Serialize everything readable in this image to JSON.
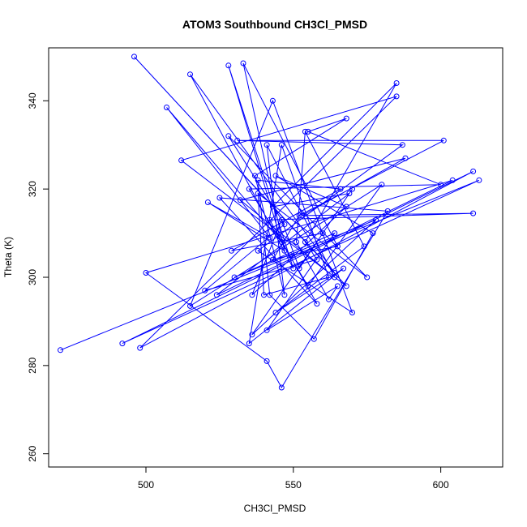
{
  "chart_data": {
    "type": "line",
    "title": "ATOM3 Southbound CH3Cl_PMSD",
    "xlabel": "CH3Cl_PMSD",
    "ylabel": "Theta (K)",
    "xlim": [
      467,
      621
    ],
    "ylim": [
      257,
      352
    ],
    "xticks": [
      500,
      550,
      600
    ],
    "yticks": [
      260,
      280,
      300,
      320,
      340
    ],
    "grid": false,
    "legend": "none",
    "series": [
      {
        "color": "#0000ff",
        "marker": "open-circle",
        "x": [
          471,
          613,
          492,
          611,
          498,
          585,
          512,
          568,
          496,
          564,
          515,
          550,
          528,
          546,
          507,
          542,
          521,
          547,
          533,
          565,
          549,
          543,
          552,
          601,
          531,
          587,
          538,
          570,
          543,
          515,
          580,
          555,
          535,
          600,
          555,
          568,
          537,
          547,
          541,
          564,
          532,
          588,
          553,
          611,
          542,
          558,
          525,
          582,
          546,
          541,
          500,
          604,
          524,
          569,
          543,
          585,
          554,
          558,
          520,
          547,
          528,
          575,
          538,
          540,
          562,
          546,
          535,
          567,
          544,
          574,
          554,
          551,
          562,
          565,
          541,
          564,
          530,
          578,
          536,
          560,
          529,
          566,
          538,
          542,
          557,
          577,
          544,
          568,
          536,
          546,
          552,
          570
        ],
        "y": [
          283.5,
          322,
          285,
          324,
          284,
          341,
          326.5,
          298,
          350,
          301,
          346,
          302,
          348,
          308,
          338.5,
          309,
          317,
          306,
          348.5,
          307,
          305,
          304,
          314,
          331,
          331,
          330,
          306,
          292,
          340,
          293.5,
          321,
          298,
          320,
          321,
          333,
          336,
          323,
          296,
          330,
          300,
          317.5,
          327,
          314,
          314.5,
          313,
          294,
          318,
          315,
          275,
          281,
          301,
          322,
          296,
          319,
          316,
          344,
          308,
          304,
          297,
          312,
          332,
          300,
          319,
          296,
          300,
          330,
          285,
          302,
          292,
          307,
          333,
          308,
          295,
          298,
          288,
          310,
          300,
          313,
          287,
          310,
          306,
          320,
          322,
          296,
          286,
          310,
          323,
          316,
          296,
          313,
          302,
          320
        ]
      }
    ]
  }
}
